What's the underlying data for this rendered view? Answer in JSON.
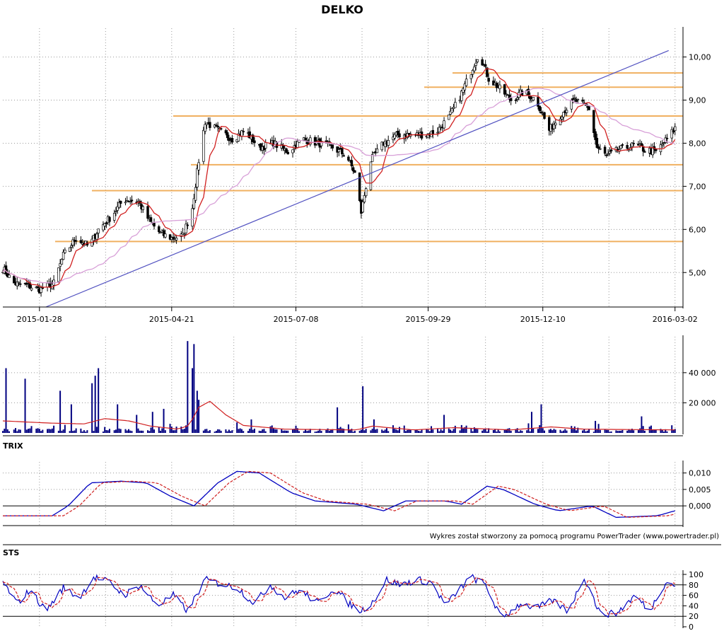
{
  "chart_data": {
    "type": "candlestick",
    "title": "DELKO",
    "credit": "Wykres został stworzony za pomocą programu PowerTrader (www.powertrader.pl)",
    "price_panel": {
      "ylim": [
        4.2,
        10.6
      ],
      "yticks": [
        5.0,
        6.0,
        7.0,
        8.0,
        9.0,
        10.0
      ],
      "ytick_labels": [
        "5,00",
        "6,00",
        "7,00",
        "8,00",
        "9,00",
        "10,00"
      ],
      "x_range": [
        "2015-01-05",
        "2016-03-07"
      ],
      "x_dates": [
        "2015-01-28",
        "2015-04-21",
        "2015-07-08",
        "2015-09-29",
        "2015-12-10",
        "2016-03-02"
      ],
      "x_labels": [
        "2015-01-28",
        "2015-04-21",
        "2015-07-08",
        "2015-09-29",
        "2015-12-10",
        "2016-03-02"
      ],
      "support_resistance": [
        5.72,
        6.9,
        7.5,
        8.63,
        9.3,
        9.63
      ],
      "level_color": "#f0b060",
      "trendline": [
        [
          "2015-02-01",
          4.2
        ],
        [
          "2016-02-27",
          10.15
        ]
      ],
      "trendline_color": "#5050c0",
      "keypoints": [
        [
          "2015-01-05",
          5.1
        ],
        [
          "2015-01-12",
          4.75
        ],
        [
          "2015-01-20",
          4.7
        ],
        [
          "2015-01-28",
          4.6
        ],
        [
          "2015-02-06",
          4.75
        ],
        [
          "2015-02-12",
          5.4
        ],
        [
          "2015-02-20",
          5.8
        ],
        [
          "2015-02-28",
          5.6
        ],
        [
          "2015-03-06",
          6.0
        ],
        [
          "2015-03-14",
          6.3
        ],
        [
          "2015-03-22",
          6.7
        ],
        [
          "2015-03-31",
          6.65
        ],
        [
          "2015-04-07",
          6.2
        ],
        [
          "2015-04-14",
          5.9
        ],
        [
          "2015-04-21",
          5.8
        ],
        [
          "2015-04-28",
          5.85
        ],
        [
          "2015-05-04",
          6.5
        ],
        [
          "2015-05-08",
          7.6
        ],
        [
          "2015-05-12",
          8.5
        ],
        [
          "2015-05-20",
          8.3
        ],
        [
          "2015-05-29",
          8.1
        ],
        [
          "2015-06-06",
          8.3
        ],
        [
          "2015-06-15",
          7.9
        ],
        [
          "2015-06-24",
          8.0
        ],
        [
          "2015-07-03",
          7.8
        ],
        [
          "2015-07-12",
          8.1
        ],
        [
          "2015-07-22",
          8.0
        ],
        [
          "2015-07-31",
          7.9
        ],
        [
          "2015-08-09",
          7.7
        ],
        [
          "2015-08-14",
          7.3
        ],
        [
          "2015-08-18",
          6.4
        ],
        [
          "2015-08-24",
          7.6
        ],
        [
          "2015-09-01",
          8.0
        ],
        [
          "2015-09-10",
          8.2
        ],
        [
          "2015-09-19",
          8.2
        ],
        [
          "2015-09-28",
          8.2
        ],
        [
          "2015-10-05",
          8.3
        ],
        [
          "2015-10-12",
          8.6
        ],
        [
          "2015-10-18",
          9.0
        ],
        [
          "2015-10-24",
          9.5
        ],
        [
          "2015-10-31",
          10.1
        ],
        [
          "2015-11-06",
          9.5
        ],
        [
          "2015-11-12",
          9.3
        ],
        [
          "2015-11-20",
          9.0
        ],
        [
          "2015-11-28",
          9.2
        ],
        [
          "2015-12-06",
          9.0
        ],
        [
          "2015-12-14",
          8.3
        ],
        [
          "2015-12-22",
          8.7
        ],
        [
          "2015-12-30",
          9.0
        ],
        [
          "2016-01-08",
          8.8
        ],
        [
          "2016-01-13",
          7.9
        ],
        [
          "2016-01-19",
          7.7
        ],
        [
          "2016-01-27",
          7.85
        ],
        [
          "2016-02-05",
          7.95
        ],
        [
          "2016-02-12",
          7.85
        ],
        [
          "2016-02-19",
          7.8
        ],
        [
          "2016-02-26",
          8.1
        ],
        [
          "2016-03-02",
          8.35
        ]
      ],
      "series": [
        {
          "name": "",
          "kind": "ma_fast",
          "color": "#d02020",
          "period": 10
        },
        {
          "name": "",
          "kind": "ma_slow",
          "color": "#d8a0d8",
          "period": 40
        }
      ]
    },
    "volume_panel": {
      "ylim": [
        0,
        62000
      ],
      "yticks": [
        20000,
        40000
      ],
      "ytick_labels": [
        "20 000",
        "40 000"
      ],
      "bar_color": "#000080",
      "ma_color": "#d02020",
      "baseline": 2000,
      "spikes": [
        [
          "2015-01-07",
          43000
        ],
        [
          "2015-01-19",
          36000
        ],
        [
          "2015-02-10",
          28000
        ],
        [
          "2015-02-17",
          19000
        ],
        [
          "2015-03-04",
          38000
        ],
        [
          "2015-03-01",
          33000
        ],
        [
          "2015-03-06",
          43000
        ],
        [
          "2015-03-18",
          19000
        ],
        [
          "2015-03-29",
          12000
        ],
        [
          "2015-04-09",
          14000
        ],
        [
          "2015-04-16",
          16000
        ],
        [
          "2015-05-01",
          61000
        ],
        [
          "2015-05-03",
          43000
        ],
        [
          "2015-05-05",
          59000
        ],
        [
          "2015-05-07",
          28000
        ],
        [
          "2015-05-09",
          22000
        ],
        [
          "2015-06-01",
          7000
        ],
        [
          "2015-06-10",
          9000
        ],
        [
          "2015-08-03",
          17000
        ],
        [
          "2015-08-19",
          31000
        ],
        [
          "2015-08-26",
          9000
        ],
        [
          "2015-10-09",
          12000
        ],
        [
          "2015-12-09",
          19000
        ],
        [
          "2015-12-03",
          14000
        ],
        [
          "2016-01-12",
          8000
        ],
        [
          "2016-02-10",
          11000
        ]
      ],
      "ma_keypoints": [
        [
          "2015-01-05",
          8000
        ],
        [
          "2015-01-25",
          7000
        ],
        [
          "2015-02-05",
          6500
        ],
        [
          "2015-02-25",
          6000
        ],
        [
          "2015-03-10",
          9500
        ],
        [
          "2015-03-25",
          8000
        ],
        [
          "2015-04-08",
          4500
        ],
        [
          "2015-04-25",
          2500
        ],
        [
          "2015-05-02",
          5000
        ],
        [
          "2015-05-08",
          17000
        ],
        [
          "2015-05-15",
          21000
        ],
        [
          "2015-05-25",
          12000
        ],
        [
          "2015-06-05",
          5000
        ],
        [
          "2015-07-01",
          2500
        ],
        [
          "2015-08-15",
          2000
        ],
        [
          "2015-08-25",
          4500
        ],
        [
          "2015-09-20",
          2000
        ],
        [
          "2015-10-15",
          3500
        ],
        [
          "2015-11-20",
          2000
        ],
        [
          "2015-12-15",
          4000
        ],
        [
          "2016-01-05",
          2500
        ],
        [
          "2016-03-02",
          2000
        ]
      ]
    },
    "trix_panel": {
      "title": "TRIX",
      "ylim": [
        -0.006,
        0.0125
      ],
      "yticks": [
        0.0,
        0.005,
        0.01
      ],
      "ytick_labels": [
        "0,000",
        "0,005",
        "0,010"
      ],
      "keypoints": [
        [
          "2015-01-05",
          -0.003
        ],
        [
          "2015-02-05",
          -0.003
        ],
        [
          "2015-02-15",
          0.0
        ],
        [
          "2015-03-01",
          0.007
        ],
        [
          "2015-03-20",
          0.0075
        ],
        [
          "2015-04-05",
          0.007
        ],
        [
          "2015-04-20",
          0.003
        ],
        [
          "2015-05-05",
          0.0
        ],
        [
          "2015-05-20",
          0.007
        ],
        [
          "2015-06-01",
          0.0105
        ],
        [
          "2015-06-15",
          0.01
        ],
        [
          "2015-07-05",
          0.004
        ],
        [
          "2015-07-20",
          0.0015
        ],
        [
          "2015-08-15",
          0.0005
        ],
        [
          "2015-09-01",
          -0.0015
        ],
        [
          "2015-09-15",
          0.0015
        ],
        [
          "2015-10-10",
          0.0015
        ],
        [
          "2015-10-20",
          0.0005
        ],
        [
          "2015-11-05",
          0.006
        ],
        [
          "2015-11-15",
          0.005
        ],
        [
          "2015-12-05",
          0.0005
        ],
        [
          "2015-12-20",
          -0.0015
        ],
        [
          "2016-01-10",
          0.0
        ],
        [
          "2016-01-25",
          -0.0035
        ],
        [
          "2016-02-20",
          -0.003
        ],
        [
          "2016-03-02",
          -0.0015
        ]
      ],
      "series": [
        {
          "name": "",
          "color": "#0000c0",
          "dash": false
        },
        {
          "name": "",
          "color": "#d02020",
          "dash": true
        }
      ]
    },
    "sts_panel": {
      "title": "STS",
      "ylim": [
        0,
        100
      ],
      "yticks": [
        0,
        20,
        40,
        60,
        80,
        100
      ],
      "ytick_labels": [
        "0",
        "20",
        "40",
        "60",
        "80",
        "100"
      ],
      "hlines": [
        20,
        80
      ],
      "keypoints": [
        [
          "2015-01-05",
          85
        ],
        [
          "2015-01-14",
          45
        ],
        [
          "2015-01-22",
          70
        ],
        [
          "2015-02-01",
          30
        ],
        [
          "2015-02-12",
          75
        ],
        [
          "2015-02-22",
          55
        ],
        [
          "2015-03-03",
          95
        ],
        [
          "2015-03-13",
          85
        ],
        [
          "2015-03-22",
          60
        ],
        [
          "2015-04-01",
          80
        ],
        [
          "2015-04-12",
          40
        ],
        [
          "2015-04-22",
          60
        ],
        [
          "2015-05-01",
          30
        ],
        [
          "2015-05-12",
          90
        ],
        [
          "2015-05-24",
          80
        ],
        [
          "2015-06-01",
          75
        ],
        [
          "2015-06-12",
          45
        ],
        [
          "2015-06-22",
          80
        ],
        [
          "2015-07-01",
          55
        ],
        [
          "2015-07-10",
          70
        ],
        [
          "2015-07-22",
          45
        ],
        [
          "2015-08-01",
          75
        ],
        [
          "2015-08-10",
          45
        ],
        [
          "2015-08-18",
          30
        ],
        [
          "2015-08-26",
          50
        ],
        [
          "2015-09-03",
          90
        ],
        [
          "2015-09-12",
          80
        ],
        [
          "2015-09-22",
          90
        ],
        [
          "2015-10-01",
          85
        ],
        [
          "2015-10-10",
          40
        ],
        [
          "2015-10-18",
          70
        ],
        [
          "2015-10-26",
          95
        ],
        [
          "2015-11-04",
          80
        ],
        [
          "2015-11-14",
          15
        ],
        [
          "2015-11-26",
          45
        ],
        [
          "2015-12-06",
          35
        ],
        [
          "2015-12-16",
          50
        ],
        [
          "2015-12-26",
          30
        ],
        [
          "2016-01-05",
          95
        ],
        [
          "2016-01-15",
          25
        ],
        [
          "2016-01-25",
          25
        ],
        [
          "2016-02-06",
          60
        ],
        [
          "2016-02-15",
          30
        ],
        [
          "2016-02-25",
          85
        ],
        [
          "2016-03-02",
          80
        ]
      ],
      "series": [
        {
          "name": "",
          "color": "#0000c0",
          "dash": false
        },
        {
          "name": "",
          "color": "#d02020",
          "dash": true
        }
      ]
    }
  }
}
